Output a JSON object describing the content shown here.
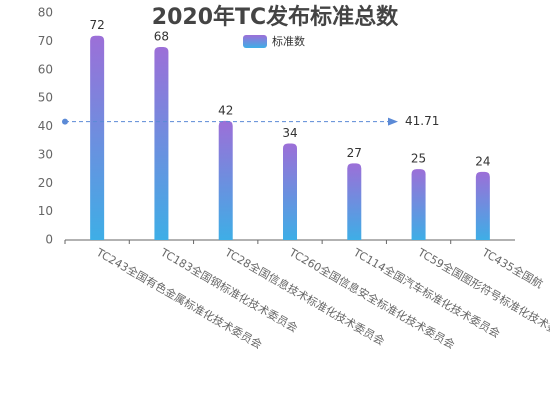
{
  "chart_data": {
    "type": "bar",
    "title": "2020年TC发布标准总数",
    "categories": [
      "TC243全国有色金属标准化技术委员会",
      "TC183全国钢标准化技术委员会",
      "TC28全国信息技术标准化技术委员会",
      "TC260全国信息安全标准化技术委员会",
      "TC114全国汽车标准化技术委员会",
      "TC59全国图形符号标准化技术委员会",
      "TC435全国航"
    ],
    "series": [
      {
        "name": "标准数",
        "color": [
          "#9c6fd8",
          "#3eaee6"
        ],
        "values": [
          72,
          68,
          42,
          34,
          27,
          25,
          24
        ]
      }
    ],
    "average_line": {
      "value": 41.71
    },
    "ylim": [
      0,
      80
    ],
    "yticks": [
      0,
      10,
      20,
      30,
      40,
      50,
      60,
      70,
      80
    ],
    "grid": false
  }
}
